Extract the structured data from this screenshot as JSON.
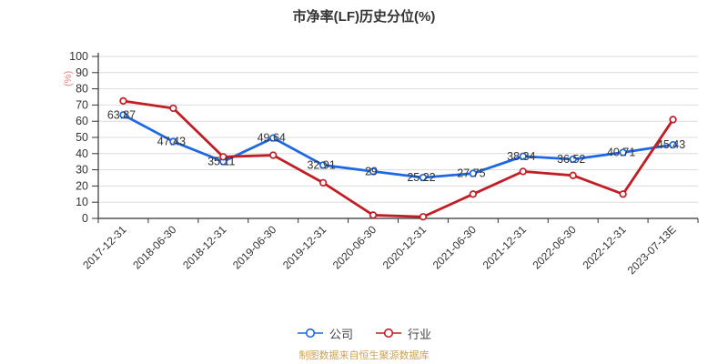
{
  "title": "市净率(LF)历史分位(%)",
  "footer": "制图数据来自恒生聚源数据库",
  "y_axis_unit": "(%)",
  "legend": {
    "items": [
      {
        "label": "公司",
        "color": "#1E68E4"
      },
      {
        "label": "行业",
        "color": "#C01E24"
      }
    ]
  },
  "colors": {
    "company_line": "#1E68E4",
    "industry_line": "#C01E24",
    "grid": "#DCDCDC",
    "axis": "#333333",
    "text": "#333333",
    "unit_label": "#E58585",
    "footer_text": "#CFA254",
    "title_text": "#333333"
  },
  "chart_data": {
    "type": "line",
    "title": "市净率(LF)历史分位(%)",
    "ylabel": "(%)",
    "ylim": [
      0,
      100
    ],
    "y_tick_step": 10,
    "grid": true,
    "legend_position": "bottom",
    "categories": [
      "2017-12-31",
      "2018-06-30",
      "2018-12-31",
      "2019-06-30",
      "2019-12-31",
      "2020-06-30",
      "2020-12-31",
      "2021-06-30",
      "2021-12-31",
      "2022-06-30",
      "2022-12-31",
      "2023-07-13E"
    ],
    "series": [
      {
        "name": "公司",
        "color": "#1E68E4",
        "values": [
          63.87,
          47.43,
          35.11,
          49.64,
          32.91,
          29,
          25.22,
          27.75,
          38.34,
          36.52,
          40.71,
          45.43
        ],
        "data_labels": [
          "63.87",
          "47.43",
          "35.11",
          "49.64",
          "32.91",
          "29",
          "25.22",
          "27.75",
          "38.34",
          "36.52",
          "40.71",
          "45.43"
        ]
      },
      {
        "name": "行业",
        "color": "#C01E24",
        "values": [
          72.5,
          68,
          38,
          39,
          22,
          2,
          1,
          15,
          29,
          26.5,
          15,
          61
        ]
      }
    ]
  }
}
